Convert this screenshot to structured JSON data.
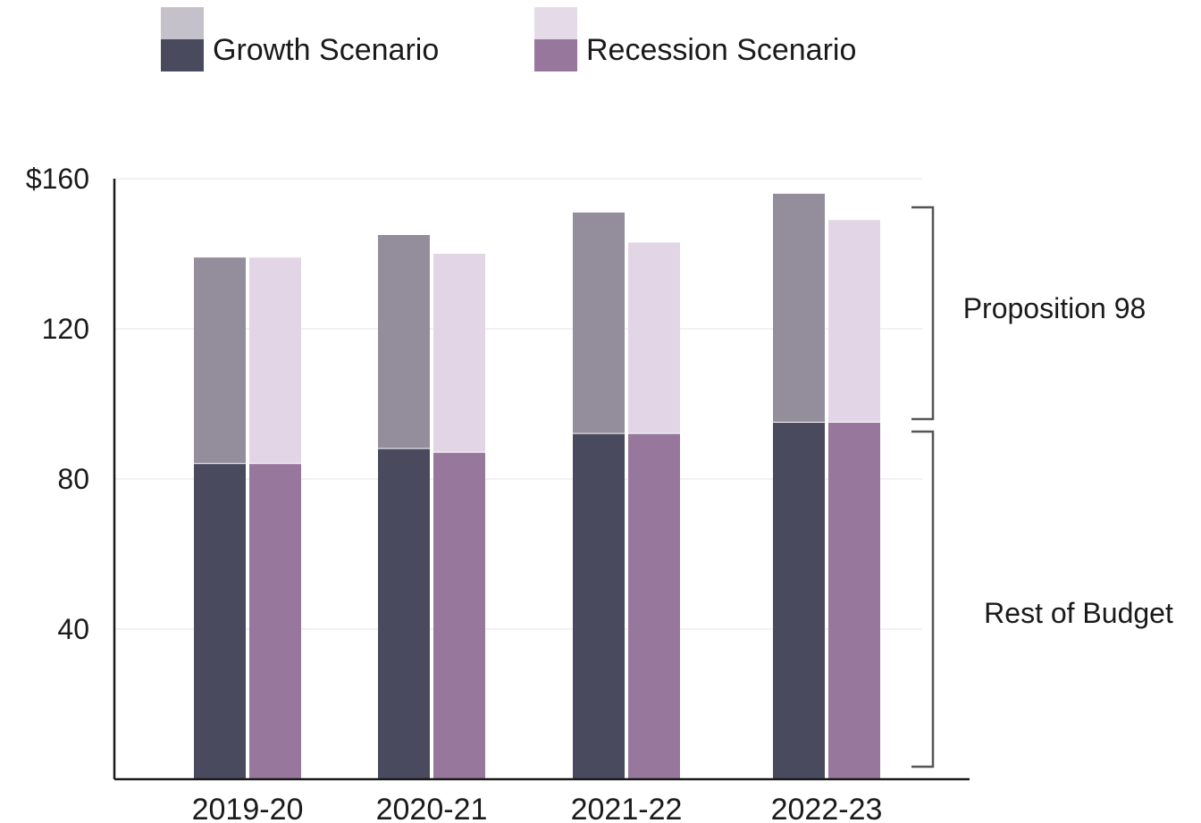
{
  "chart_data": {
    "type": "bar",
    "stacked": true,
    "grouped": true,
    "categories": [
      "2019-20",
      "2020-21",
      "2021-22",
      "2022-23"
    ],
    "yticks": [
      "$160",
      "120",
      "80",
      "40"
    ],
    "ytick_values": [
      160,
      120,
      80,
      40
    ],
    "ylim": [
      0,
      160
    ],
    "grid": true,
    "legend_position": "top",
    "legend": [
      {
        "label": "Growth Scenario",
        "color_top": "#c5c1cb",
        "color_bottom": "#4a4a5e"
      },
      {
        "label": "Recession Scenario",
        "color_top": "#e5dbe8",
        "color_bottom": "#97789c"
      }
    ],
    "series": [
      {
        "name": "Growth Scenario",
        "rest_of_budget": [
          84,
          88,
          92,
          95
        ],
        "proposition_98": [
          55,
          57,
          59,
          61
        ],
        "color_rest": "#4a4a5e",
        "color_prop98": "#938d9c"
      },
      {
        "name": "Recession Scenario",
        "rest_of_budget": [
          84,
          87,
          92,
          95
        ],
        "proposition_98": [
          55,
          53,
          51,
          54
        ],
        "color_rest": "#97789c",
        "color_prop98": "#e2d6e6"
      }
    ],
    "annotations": {
      "proposition_98": "Proposition 98",
      "rest_of_budget": "Rest of Budget"
    }
  }
}
